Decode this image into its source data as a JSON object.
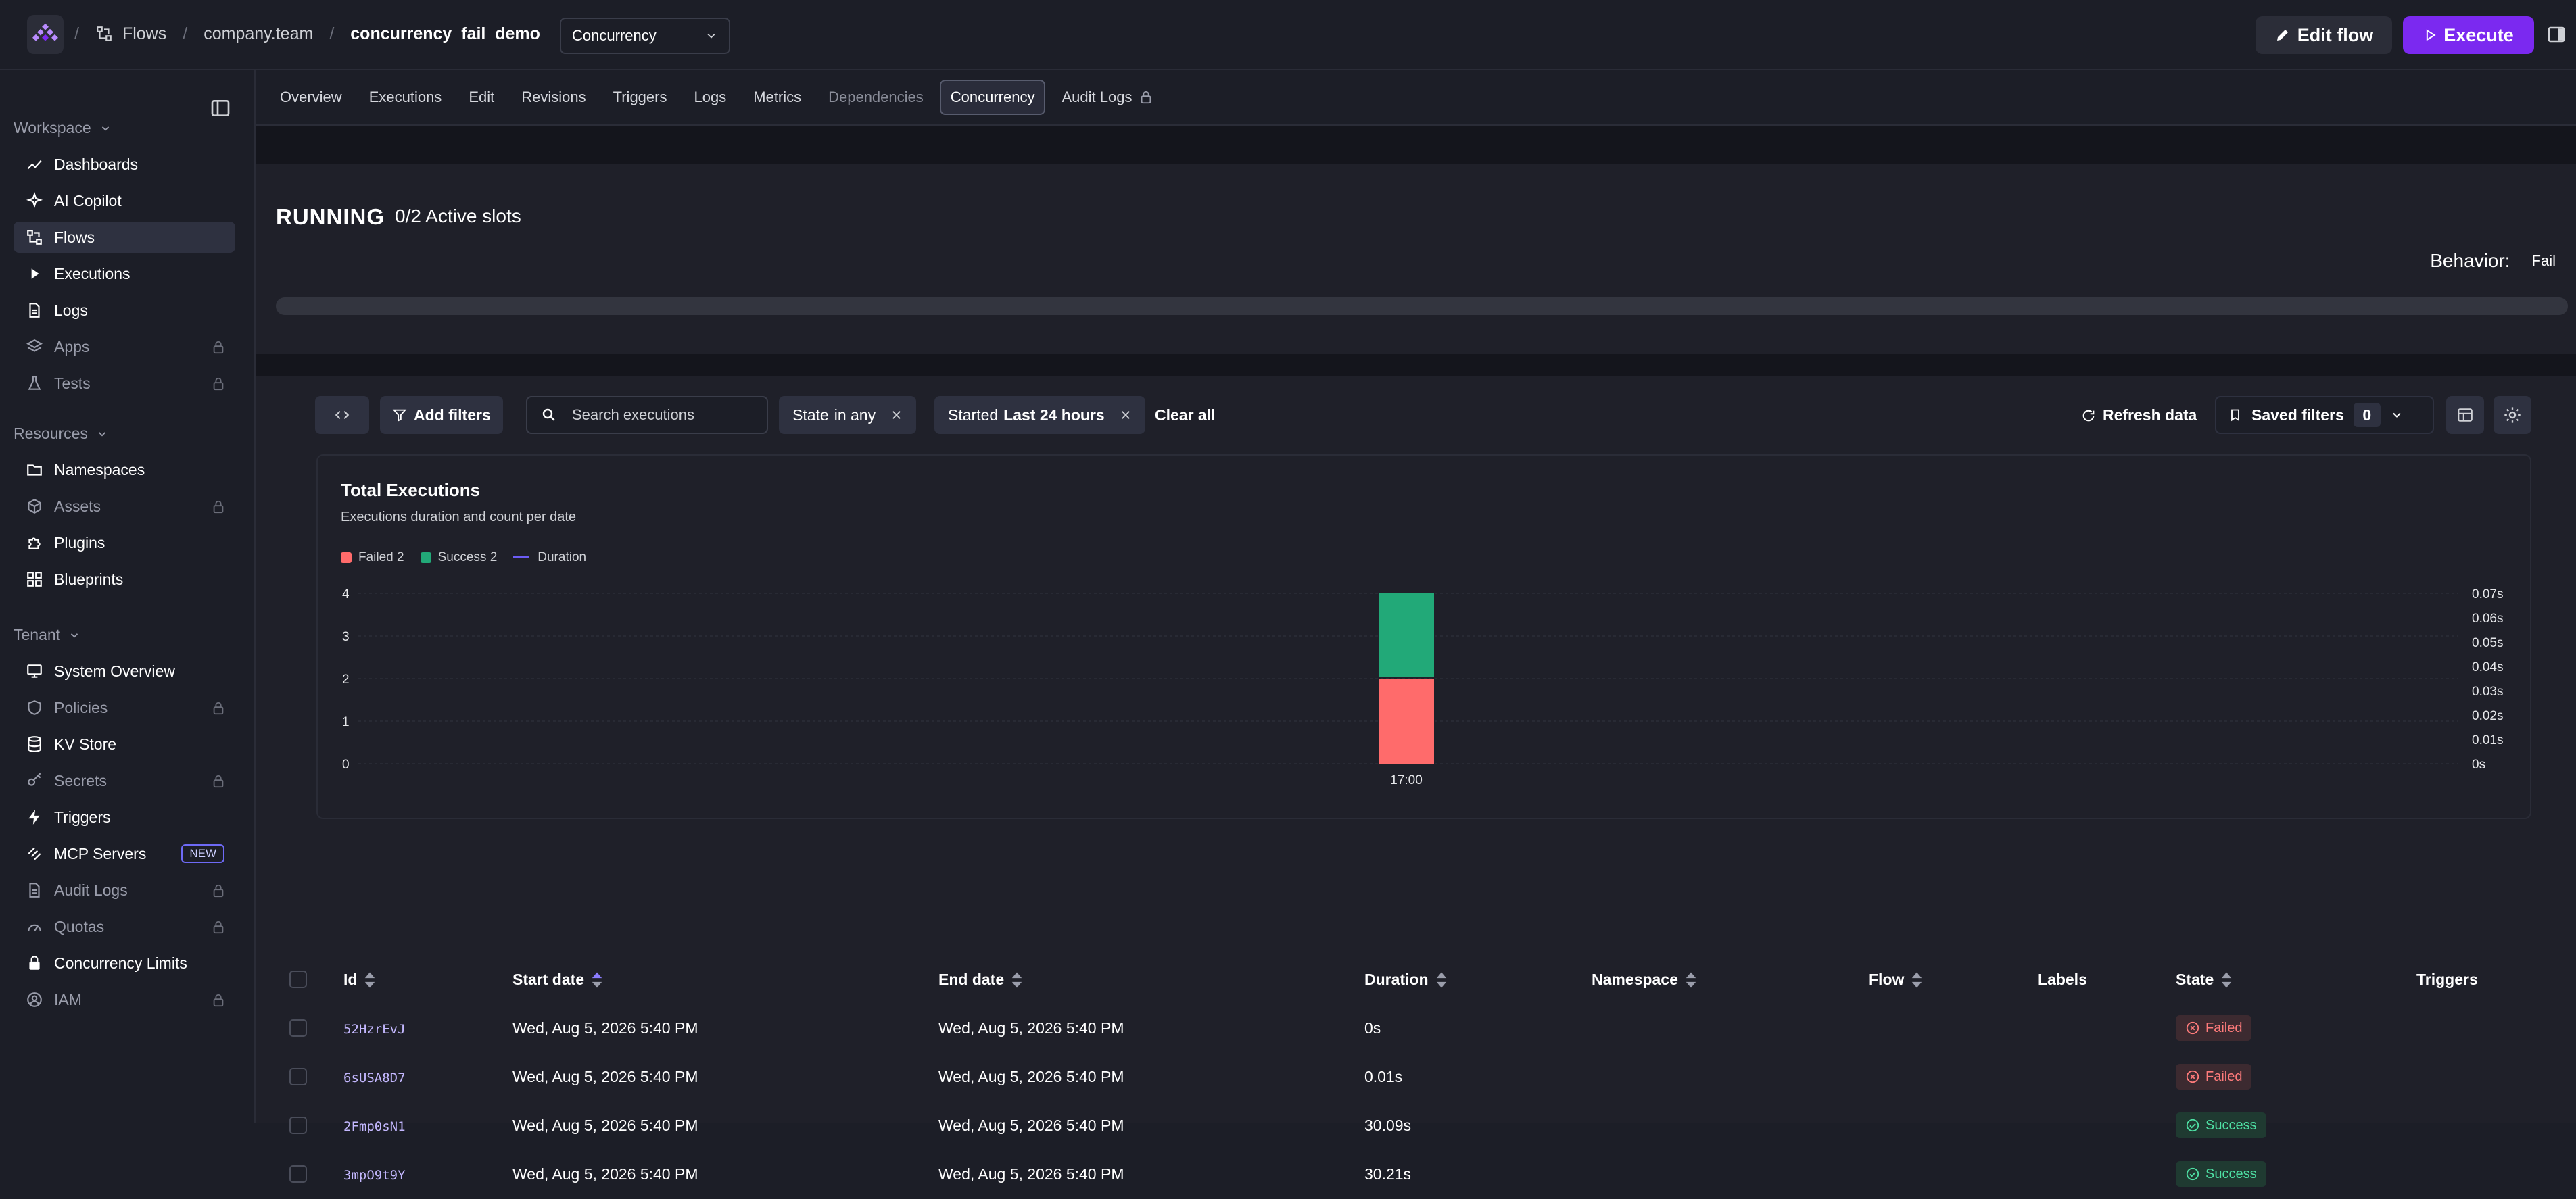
{
  "breadcrumb": {
    "root": "Flows",
    "namespace": "company.team",
    "flow": "concurrency_fail_demo"
  },
  "header": {
    "select_value": "Concurrency",
    "edit_label": "Edit flow",
    "execute_label": "Execute"
  },
  "colors": {
    "accent": "#7b29f0",
    "failed": "#ff6b6b",
    "success": "#22a978",
    "duration": "#6c5cf5"
  },
  "sidebar": {
    "workspace_label": "Workspace",
    "workspace": [
      {
        "label": "Dashboards",
        "icon": "chart-line-icon"
      },
      {
        "label": "AI Copilot",
        "icon": "sparkle-icon"
      },
      {
        "label": "Flows",
        "icon": "flow-icon"
      },
      {
        "label": "Executions",
        "icon": "play-icon"
      },
      {
        "label": "Logs",
        "icon": "file-icon"
      },
      {
        "label": "Apps",
        "icon": "layers-icon"
      },
      {
        "label": "Tests",
        "icon": "flask-icon"
      }
    ],
    "resources_label": "Resources",
    "resources": [
      {
        "label": "Namespaces",
        "icon": "folder-icon"
      },
      {
        "label": "Assets",
        "icon": "cube-icon"
      },
      {
        "label": "Plugins",
        "icon": "puzzle-icon"
      },
      {
        "label": "Blueprints",
        "icon": "grid-icon"
      }
    ],
    "tenant_label": "Tenant",
    "tenant": [
      {
        "label": "System Overview",
        "icon": "monitor-icon"
      },
      {
        "label": "Policies",
        "icon": "shield-icon"
      },
      {
        "label": "KV Store",
        "icon": "database-icon"
      },
      {
        "label": "Secrets",
        "icon": "key-icon"
      },
      {
        "label": "Triggers",
        "icon": "bolt-icon"
      },
      {
        "label": "MCP Servers",
        "icon": "mcp-icon",
        "badge": "NEW"
      },
      {
        "label": "Audit Logs",
        "icon": "file-icon"
      },
      {
        "label": "Quotas",
        "icon": "gauge-icon"
      },
      {
        "label": "Concurrency Limits",
        "icon": "lock-icon"
      },
      {
        "label": "IAM",
        "icon": "user-circle-icon"
      }
    ]
  },
  "tabs": [
    "Overview",
    "Executions",
    "Edit",
    "Revisions",
    "Triggers",
    "Logs",
    "Metrics",
    "Dependencies",
    "Concurrency",
    "Audit Logs"
  ],
  "concurrency": {
    "state": "RUNNING",
    "slots": "0/2 Active slots",
    "behavior_label": "Behavior:",
    "behavior_value": "Fail",
    "slots_used_fraction": 0
  },
  "filters": {
    "add_filters": "Add filters",
    "search_placeholder": "Search executions",
    "state_chip_label": "State",
    "state_chip_value": "in any",
    "started_chip_label": "Started",
    "started_chip_value": "Last 24 hours",
    "clear_all": "Clear all",
    "refresh": "Refresh data",
    "saved_filters": "Saved filters",
    "saved_count": "0"
  },
  "chart": {
    "title": "Total Executions",
    "subtitle": "Executions duration and count per date"
  },
  "chart_data": {
    "type": "bar",
    "title": "Total Executions",
    "subtitle": "Executions duration and count per date",
    "categories": [
      "17:00"
    ],
    "series": [
      {
        "name": "Failed 2",
        "values": [
          2
        ]
      },
      {
        "name": "Success 2",
        "values": [
          2
        ]
      },
      {
        "name": "Duration",
        "values": [
          0
        ]
      }
    ],
    "ylim": [
      0,
      4
    ],
    "y_ticks": [
      "0",
      "1",
      "2",
      "3",
      "4"
    ],
    "y2_ticks": [
      "0s",
      "0.01s",
      "0.02s",
      "0.03s",
      "0.04s",
      "0.05s",
      "0.06s",
      "0.07s"
    ],
    "stacked": true,
    "grid": true,
    "legend": "top-left"
  },
  "table": {
    "headers": {
      "id": "Id",
      "start": "Start date",
      "end": "End date",
      "duration": "Duration",
      "namespace": "Namespace",
      "flow": "Flow",
      "labels": "Labels",
      "state": "State",
      "triggers": "Triggers"
    },
    "rows": [
      {
        "id": "52HzrEvJ",
        "start": "Wed, Aug 5, 2026 5:40 PM",
        "end": "Wed, Aug 5, 2026 5:40 PM",
        "duration": "0s",
        "state": "Failed"
      },
      {
        "id": "6sUSA8D7",
        "start": "Wed, Aug 5, 2026 5:40 PM",
        "end": "Wed, Aug 5, 2026 5:40 PM",
        "duration": "0.01s",
        "state": "Failed"
      },
      {
        "id": "2Fmp0sN1",
        "start": "Wed, Aug 5, 2026 5:40 PM",
        "end": "Wed, Aug 5, 2026 5:40 PM",
        "duration": "30.09s",
        "state": "Success"
      },
      {
        "id": "3mpO9t9Y",
        "start": "Wed, Aug 5, 2026 5:40 PM",
        "end": "Wed, Aug 5, 2026 5:40 PM",
        "duration": "30.21s",
        "state": "Success"
      }
    ]
  }
}
